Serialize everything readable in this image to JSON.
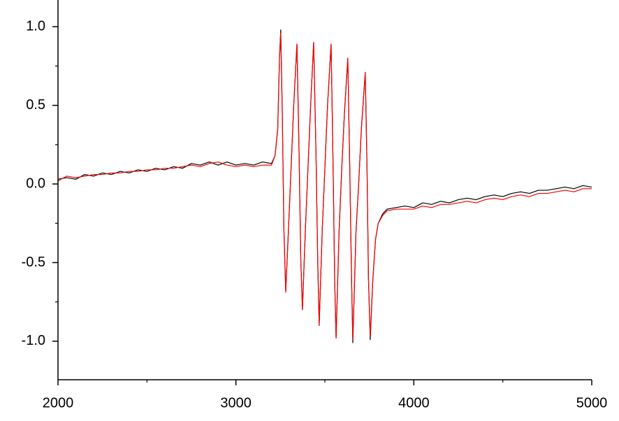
{
  "chart_data": {
    "type": "line",
    "x": [
      2000,
      2050,
      2100,
      2150,
      2200,
      2250,
      2300,
      2350,
      2400,
      2450,
      2500,
      2550,
      2600,
      2650,
      2700,
      2750,
      2800,
      2850,
      2900,
      2950,
      3000,
      3050,
      3100,
      3150,
      3200,
      3220,
      3235,
      3245,
      3252,
      3260,
      3270,
      3280,
      3295,
      3310,
      3325,
      3343,
      3355,
      3365,
      3374,
      3390,
      3405,
      3420,
      3437,
      3450,
      3460,
      3468,
      3485,
      3500,
      3515,
      3535,
      3545,
      3555,
      3563,
      3580,
      3595,
      3610,
      3629,
      3640,
      3650,
      3657,
      3675,
      3690,
      3705,
      3727,
      3737,
      3745,
      3755,
      3770,
      3785,
      3800,
      3825,
      3850,
      3900,
      3950,
      4000,
      4050,
      4100,
      4150,
      4200,
      4250,
      4300,
      4350,
      4400,
      4450,
      4500,
      4550,
      4600,
      4650,
      4700,
      4750,
      4800,
      4850,
      4900,
      4950,
      5000
    ],
    "series": [
      {
        "color": "#000000",
        "values": [
          0.03,
          0.04,
          0.03,
          0.06,
          0.05,
          0.07,
          0.06,
          0.08,
          0.07,
          0.09,
          0.08,
          0.1,
          0.09,
          0.11,
          0.1,
          0.13,
          0.12,
          0.14,
          0.12,
          0.14,
          0.12,
          0.13,
          0.12,
          0.14,
          0.13,
          0.18,
          0.35,
          0.8,
          0.98,
          0.5,
          -0.3,
          -0.68,
          -0.3,
          0.1,
          0.5,
          0.89,
          0.2,
          -0.5,
          -0.8,
          -0.3,
          0.1,
          0.5,
          0.9,
          0.2,
          -0.5,
          -0.9,
          -0.3,
          0.1,
          0.5,
          0.89,
          0.2,
          -0.6,
          -0.98,
          -0.3,
          0.1,
          0.45,
          0.8,
          0.1,
          -0.6,
          -1.01,
          -0.3,
          0.0,
          0.35,
          0.71,
          0.1,
          -0.6,
          -0.99,
          -0.6,
          -0.35,
          -0.25,
          -0.19,
          -0.16,
          -0.15,
          -0.14,
          -0.15,
          -0.12,
          -0.13,
          -0.11,
          -0.12,
          -0.1,
          -0.09,
          -0.1,
          -0.08,
          -0.07,
          -0.08,
          -0.06,
          -0.05,
          -0.06,
          -0.04,
          -0.04,
          -0.03,
          -0.02,
          -0.03,
          -0.01,
          -0.02
        ]
      },
      {
        "color": "#ff0000",
        "values": [
          0.02,
          0.05,
          0.04,
          0.05,
          0.06,
          0.06,
          0.07,
          0.07,
          0.08,
          0.08,
          0.09,
          0.09,
          0.1,
          0.1,
          0.11,
          0.12,
          0.11,
          0.13,
          0.14,
          0.12,
          0.11,
          0.12,
          0.11,
          0.12,
          0.12,
          0.18,
          0.35,
          0.8,
          0.96,
          0.5,
          -0.3,
          -0.69,
          -0.3,
          0.1,
          0.5,
          0.89,
          0.2,
          -0.5,
          -0.8,
          -0.3,
          0.1,
          0.5,
          0.9,
          0.2,
          -0.5,
          -0.9,
          -0.3,
          0.1,
          0.5,
          0.89,
          0.2,
          -0.6,
          -0.98,
          -0.3,
          0.1,
          0.45,
          0.8,
          0.1,
          -0.6,
          -0.99,
          -0.3,
          0.0,
          0.35,
          0.71,
          0.1,
          -0.6,
          -0.97,
          -0.6,
          -0.35,
          -0.25,
          -0.2,
          -0.17,
          -0.16,
          -0.16,
          -0.16,
          -0.14,
          -0.15,
          -0.13,
          -0.13,
          -0.12,
          -0.11,
          -0.12,
          -0.1,
          -0.09,
          -0.1,
          -0.08,
          -0.07,
          -0.08,
          -0.06,
          -0.06,
          -0.05,
          -0.04,
          -0.05,
          -0.03,
          -0.03
        ]
      }
    ],
    "xlim": [
      2000,
      5000
    ],
    "xticks": [
      2000,
      3000,
      4000,
      5000
    ],
    "xminorticks": [
      2500,
      3500,
      4500
    ],
    "ylim": [
      -1.245,
      1.17
    ],
    "yticks": [
      {
        "value": -1,
        "label": "-1.0"
      },
      -0.5,
      {
        "value": 0,
        "label": "0.0"
      },
      0.5,
      {
        "value": 1,
        "label": "1.0"
      }
    ],
    "yminorticks": [
      -0.75,
      -0.25,
      0.25,
      0.75
    ]
  }
}
